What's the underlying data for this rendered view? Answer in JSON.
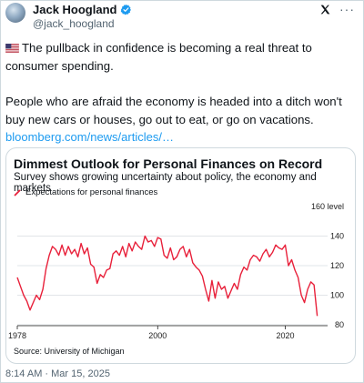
{
  "author": {
    "name": "Jack Hoogland",
    "handle": "@jack_hoogland"
  },
  "tweet": {
    "paragraph1": "The pullback in confidence is becoming a real threat to consumer spending.",
    "paragraph2": "People who are afraid the economy is headed into a ditch won't buy new cars or houses, go out to eat, or go on vacations.",
    "link": "bloomberg.com/news/articles/…",
    "timestamp": "8:14 AM · Mar 15, 2025"
  },
  "icons": {
    "flag": "us-flag-icon",
    "verified": "verified-badge-icon",
    "more": "more-options-icon",
    "brand": "x-logo-icon"
  },
  "colors": {
    "link": "#1d9bf0",
    "series": "#e8203a",
    "verified": "#1d9bf0"
  },
  "card": {
    "source": "Source: University of Michigan"
  },
  "chart_data": {
    "type": "line",
    "title": "Dimmest Outlook for Personal Finances on Record",
    "subtitle": "Survey shows growing uncertainty about policy, the economy and markets",
    "legend": "Expectations for personal finances",
    "ylabel": "",
    "xlabel": "",
    "y_unit_label": "160 level",
    "ylim": [
      80,
      160
    ],
    "yticks": [
      80,
      100,
      120,
      140
    ],
    "xlim": [
      1978,
      2025.2
    ],
    "xticks": [
      1978,
      2000,
      2020
    ],
    "grid": "horizontal",
    "series": [
      {
        "name": "Expectations for personal finances",
        "x": [
          1978,
          1978.5,
          1979,
          1979.5,
          1980,
          1980.5,
          1981,
          1981.5,
          1982,
          1982.5,
          1983,
          1983.5,
          1984,
          1984.5,
          1985,
          1985.5,
          1986,
          1986.5,
          1987,
          1987.5,
          1988,
          1988.5,
          1989,
          1989.5,
          1990,
          1990.5,
          1991,
          1991.5,
          1992,
          1992.5,
          1993,
          1993.5,
          1994,
          1994.5,
          1995,
          1995.5,
          1996,
          1996.5,
          1997,
          1997.5,
          1998,
          1998.5,
          1999,
          1999.5,
          2000,
          2000.5,
          2001,
          2001.5,
          2002,
          2002.5,
          2003,
          2003.5,
          2004,
          2004.5,
          2005,
          2005.5,
          2006,
          2006.5,
          2007,
          2007.5,
          2008,
          2008.5,
          2009,
          2009.5,
          2010,
          2010.5,
          2011,
          2011.5,
          2012,
          2012.5,
          2013,
          2013.5,
          2014,
          2014.5,
          2015,
          2015.5,
          2016,
          2016.5,
          2017,
          2017.5,
          2018,
          2018.5,
          2019,
          2019.5,
          2020,
          2020.5,
          2021,
          2021.5,
          2022,
          2022.5,
          2023,
          2023.5,
          2024,
          2024.5,
          2025
        ],
        "values": [
          112,
          106,
          100,
          96,
          90,
          95,
          100,
          97,
          104,
          118,
          127,
          133,
          131,
          127,
          134,
          127,
          133,
          128,
          131,
          126,
          135,
          128,
          132,
          121,
          119,
          108,
          114,
          112,
          117,
          118,
          128,
          130,
          127,
          133,
          126,
          135,
          130,
          136,
          133,
          131,
          140,
          136,
          137,
          133,
          139,
          138,
          127,
          125,
          132,
          124,
          126,
          131,
          133,
          126,
          131,
          122,
          119,
          117,
          113,
          104,
          96,
          110,
          98,
          109,
          104,
          106,
          98,
          103,
          108,
          104,
          114,
          119,
          117,
          124,
          127,
          126,
          123,
          128,
          131,
          126,
          129,
          134,
          132,
          131,
          134,
          120,
          124,
          117,
          112,
          100,
          95,
          104,
          109,
          107,
          86
        ]
      }
    ]
  }
}
